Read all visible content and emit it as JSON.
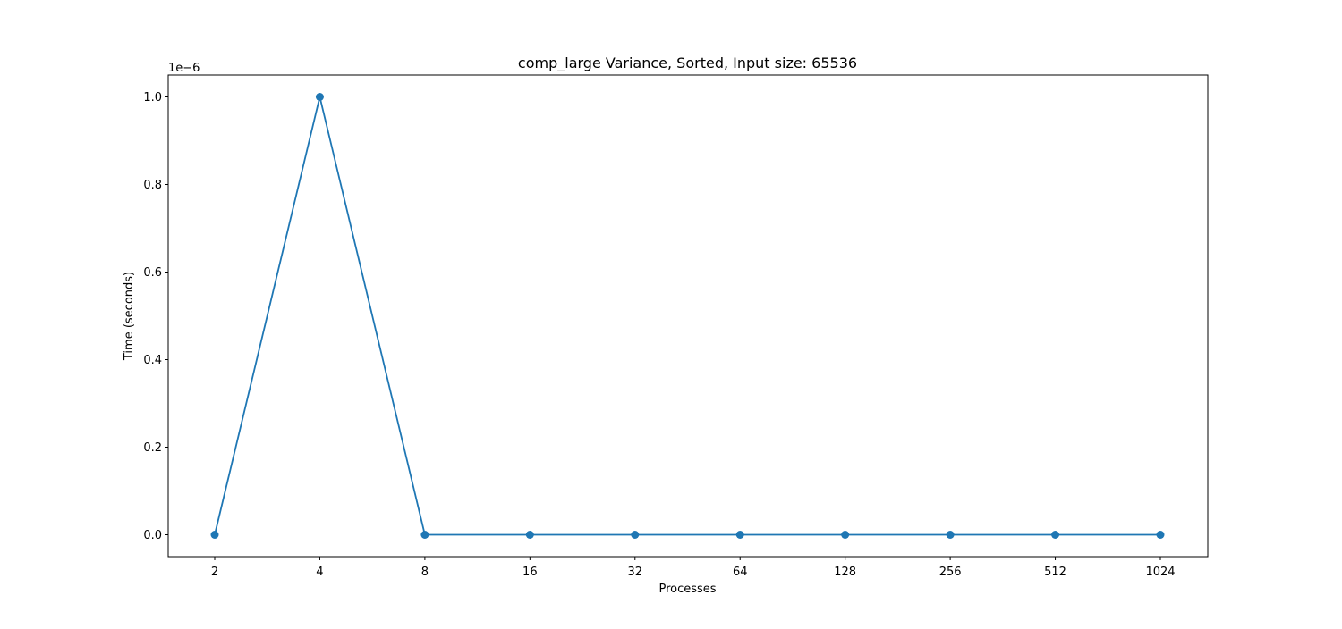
{
  "chart_data": {
    "type": "line",
    "title": "comp_large Variance, Sorted, Input size: 65536",
    "xlabel": "Processes",
    "ylabel": "Time (seconds)",
    "y_offset_label": "1e−6",
    "y_scale_factor": 1e-06,
    "x_scale": "categorical",
    "categories": [
      "2",
      "4",
      "8",
      "16",
      "32",
      "64",
      "128",
      "256",
      "512",
      "1024"
    ],
    "series": [
      {
        "values": [
          0,
          1e-06,
          0,
          0,
          0,
          0,
          0,
          0,
          0,
          0
        ],
        "color": "#1f77b4",
        "marker": "circle"
      }
    ],
    "ylim": [
      -5e-08,
      1.05e-06
    ],
    "yticks": [
      0.0,
      2e-07,
      4e-07,
      6e-07,
      8e-07,
      1e-06
    ],
    "ytick_labels": [
      "0.0",
      "0.2",
      "0.4",
      "0.6",
      "0.8",
      "1.0"
    ],
    "grid": false,
    "legend": "none"
  }
}
